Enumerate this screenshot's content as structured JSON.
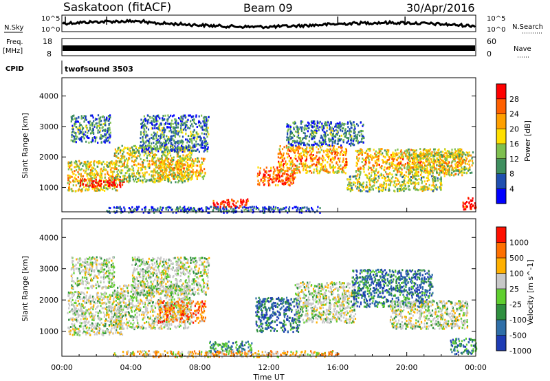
{
  "header": {
    "site": "Saskatoon (fitACF)",
    "beam": "Beam 09",
    "date": "30/Apr/2016"
  },
  "nsky_panel": {
    "left_label": "N.Sky",
    "left_ticks": [
      "10^5",
      "10^0"
    ],
    "right_label": "N.Search",
    "right_ticks": [
      "10^5",
      "10^0"
    ]
  },
  "freq_panel": {
    "left_label": "Freq.",
    "left_unit": "[MHz]",
    "left_ticks": [
      "18",
      "8"
    ],
    "right_label": "Nave",
    "right_ticks": [
      "60",
      "0"
    ]
  },
  "cpid_panel": {
    "label": "CPID",
    "value": "twofsound  3503"
  },
  "chart_data": [
    {
      "type": "heatmap",
      "name": "power",
      "ylabel": "Slant Range [km]",
      "yticks": [
        1000,
        2000,
        3000,
        4000
      ],
      "ylim": [
        200,
        4600
      ],
      "xlim_hours": [
        0,
        24
      ],
      "colorbar": {
        "label": "Power [dB]",
        "ticks": [
          "28",
          "24",
          "20",
          "16",
          "12",
          "8",
          "4"
        ],
        "colors": [
          "#0000ff",
          "#1f4fb0",
          "#3f8f5f",
          "#7fc04f",
          "#ffdf00",
          "#ffa000",
          "#ff6000",
          "#ff0000"
        ]
      },
      "bands": [
        {
          "t0": 0.3,
          "t1": 3.2,
          "r0": 900,
          "r1": 1900,
          "level": 0.5
        },
        {
          "t0": 1.0,
          "t1": 3.6,
          "r0": 1050,
          "r1": 1300,
          "level": 0.9
        },
        {
          "t0": 0.5,
          "t1": 2.8,
          "r0": 2500,
          "r1": 3400,
          "level": 0.2
        },
        {
          "t0": 3.0,
          "t1": 7.5,
          "r0": 1200,
          "r1": 2400,
          "level": 0.45
        },
        {
          "t0": 4.5,
          "t1": 8.5,
          "r0": 2200,
          "r1": 3400,
          "level": 0.2
        },
        {
          "t0": 5.5,
          "t1": 8.3,
          "r0": 1300,
          "r1": 2000,
          "level": 0.55
        },
        {
          "t0": 8.7,
          "t1": 10.8,
          "r0": 350,
          "r1": 650,
          "level": 0.85
        },
        {
          "t0": 11.3,
          "t1": 13.5,
          "r0": 1100,
          "r1": 1700,
          "level": 0.75
        },
        {
          "t0": 12.5,
          "t1": 16.5,
          "r0": 1500,
          "r1": 2400,
          "level": 0.6
        },
        {
          "t0": 13.0,
          "t1": 17.5,
          "r0": 2400,
          "r1": 3200,
          "level": 0.2
        },
        {
          "t0": 17.0,
          "t1": 23.2,
          "r0": 1400,
          "r1": 2300,
          "level": 0.55
        },
        {
          "t0": 16.5,
          "t1": 22.0,
          "r0": 900,
          "r1": 1400,
          "level": 0.4
        },
        {
          "t0": 20.0,
          "t1": 23.8,
          "r0": 1500,
          "r1": 2200,
          "level": 0.45
        },
        {
          "t0": 23.2,
          "t1": 24.0,
          "r0": 300,
          "r1": 700,
          "level": 0.9
        },
        {
          "t0": 2.5,
          "t1": 15.0,
          "r0": 200,
          "r1": 400,
          "level": 0.1
        }
      ]
    },
    {
      "type": "heatmap",
      "name": "velocity",
      "ylabel": "Slant Range [km]",
      "yticks": [
        1000,
        2000,
        3000,
        4000
      ],
      "ylim": [
        200,
        4600
      ],
      "xlim_hours": [
        0,
        24
      ],
      "xticks": [
        "00:00",
        "04:00",
        "08:00",
        "12:00",
        "16:00",
        "20:00",
        "00:00"
      ],
      "xlabel": "Time UT",
      "colorbar": {
        "label": "Velocity [m s^-1]",
        "ticks": [
          "1000",
          "500",
          "100",
          "25",
          "-25",
          "-100",
          "-500",
          "-1000"
        ],
        "colors": [
          "#1e3cb4",
          "#2f6fa8",
          "#2f8f3f",
          "#5fcf2f",
          "#c8c8c8",
          "#ffb000",
          "#ff7000",
          "#ff1000"
        ]
      },
      "bands": [
        {
          "t0": 0.3,
          "t1": 3.5,
          "r0": 900,
          "r1": 2300,
          "level": 0.5
        },
        {
          "t0": 0.5,
          "t1": 3.0,
          "r0": 2400,
          "r1": 3400,
          "level": 0.5
        },
        {
          "t0": 3.0,
          "t1": 7.5,
          "r0": 1100,
          "r1": 2500,
          "level": 0.48
        },
        {
          "t0": 5.5,
          "t1": 8.3,
          "r0": 1300,
          "r1": 2000,
          "level": 0.25
        },
        {
          "t0": 4.0,
          "t1": 8.5,
          "r0": 2200,
          "r1": 3400,
          "level": 0.5
        },
        {
          "t0": 8.5,
          "t1": 11.0,
          "r0": 350,
          "r1": 700,
          "level": 0.7
        },
        {
          "t0": 11.2,
          "t1": 13.8,
          "r0": 1000,
          "r1": 2100,
          "level": 0.82
        },
        {
          "t0": 13.5,
          "t1": 17.0,
          "r0": 1300,
          "r1": 2600,
          "level": 0.5
        },
        {
          "t0": 16.8,
          "t1": 21.5,
          "r0": 1800,
          "r1": 3000,
          "level": 0.78
        },
        {
          "t0": 19.0,
          "t1": 23.5,
          "r0": 1100,
          "r1": 2000,
          "level": 0.5
        },
        {
          "t0": 22.5,
          "t1": 24.0,
          "r0": 300,
          "r1": 800,
          "level": 0.75
        },
        {
          "t0": 3.0,
          "t1": 16.0,
          "r0": 200,
          "r1": 400,
          "level": 0.35
        }
      ]
    }
  ]
}
